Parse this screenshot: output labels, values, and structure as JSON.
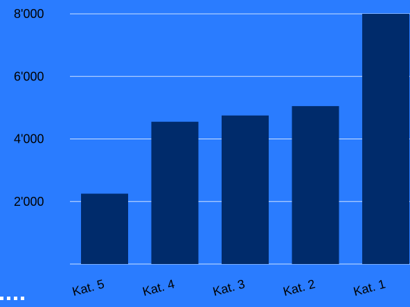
{
  "chart_data": {
    "type": "bar",
    "categories": [
      "Kat. 5",
      "Kat. 4",
      "Kat. 3",
      "Kat. 2",
      "Kat. 1"
    ],
    "values": [
      2250,
      4550,
      4750,
      5050,
      8000
    ],
    "yticks": [
      "2'000",
      "4'000",
      "6'000",
      "8'000"
    ],
    "ytick_values": [
      2000,
      4000,
      6000,
      8000
    ],
    "ylim": [
      0,
      8000
    ],
    "grid": true,
    "title": "",
    "xlabel": "",
    "ylabel": "",
    "colors": {
      "background": "#2a7cff",
      "bar": "#002b6b",
      "grid": "#cfe2ff"
    }
  }
}
